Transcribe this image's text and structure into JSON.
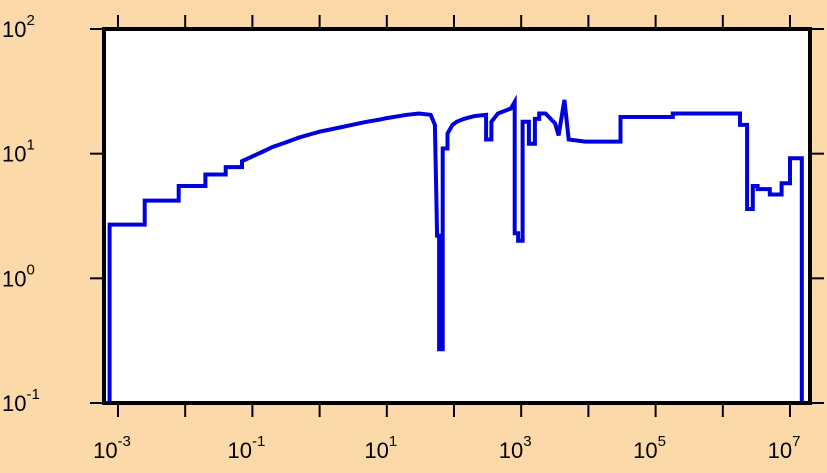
{
  "colors": {
    "background": "#FCD9A8",
    "plot_area": "#FFFFFF",
    "series": "#0000DD",
    "frame": "#000000"
  },
  "chart_data": {
    "type": "line",
    "style": "step",
    "title": "",
    "xlabel": "",
    "ylabel": "",
    "xscale": "log",
    "yscale": "log",
    "xlim": [
      0.0005,
      20000000
    ],
    "ylim": [
      0.1,
      100
    ],
    "grid": false,
    "legend": "none",
    "x_ticks": [
      {
        "base": "10",
        "exp": "-3",
        "value": 0.001
      },
      {
        "base": "10",
        "exp": "-1",
        "value": 0.1
      },
      {
        "base": "10",
        "exp": "1",
        "value": 10
      },
      {
        "base": "10",
        "exp": "3",
        "value": 1000
      },
      {
        "base": "10",
        "exp": "5",
        "value": 100000
      },
      {
        "base": "10",
        "exp": "7",
        "value": 10000000
      }
    ],
    "y_ticks": [
      {
        "base": "10",
        "exp": "-1",
        "value": 0.1
      },
      {
        "base": "10",
        "exp": "0",
        "value": 1
      },
      {
        "base": "10",
        "exp": "1",
        "value": 10
      },
      {
        "base": "10",
        "exp": "2",
        "value": 100
      }
    ],
    "series": [
      {
        "x": [
          0.00075,
          0.00075,
          0.0025,
          0.0025,
          0.008,
          0.008,
          0.02,
          0.02,
          0.04,
          0.04,
          0.07,
          0.07,
          0.1,
          0.15,
          0.2,
          0.3,
          0.5,
          0.8,
          1,
          2,
          3,
          5,
          8,
          10,
          20,
          30,
          45,
          52,
          56,
          60,
          60,
          68,
          68,
          80,
          80,
          95,
          110,
          140,
          200,
          300,
          300,
          360,
          360,
          450,
          700,
          800,
          800,
          900,
          900,
          1050,
          1050,
          1300,
          1300,
          1600,
          1600,
          1850,
          1850,
          2300,
          3200,
          3200,
          3600,
          3600,
          4400,
          4400,
          5100,
          5100,
          9000,
          30000,
          30000,
          180000,
          180000,
          1800000,
          1800000,
          2300000,
          2300000,
          2800000,
          2800000,
          3300000,
          3300000,
          5000000,
          5000000,
          7500000,
          7500000,
          10000000,
          10000000,
          15000000,
          15000000
        ],
        "y": [
          0.1,
          2.7,
          2.7,
          4.2,
          4.2,
          5.5,
          5.5,
          6.8,
          6.8,
          7.8,
          7.8,
          8.7,
          9.5,
          10.5,
          11.3,
          12.2,
          13.5,
          14.5,
          15,
          16.2,
          17,
          18,
          18.8,
          19.3,
          20.5,
          21,
          20.5,
          17,
          2.2,
          2.2,
          0.27,
          0.27,
          11,
          11,
          14.5,
          17,
          18,
          19,
          20,
          20.5,
          13,
          13,
          18,
          21,
          23,
          26,
          2.3,
          2.3,
          2,
          2,
          18,
          18,
          12,
          12,
          19,
          19,
          21,
          21,
          17.5,
          17.5,
          14,
          14,
          27,
          27,
          13,
          13,
          12.5,
          12.5,
          19.7,
          19.7,
          21,
          21,
          17,
          17,
          3.6,
          3.6,
          5.5,
          5.5,
          5.2,
          5.2,
          4.7,
          4.7,
          5.8,
          5.8,
          9.2,
          9.2,
          0.1
        ]
      }
    ]
  }
}
